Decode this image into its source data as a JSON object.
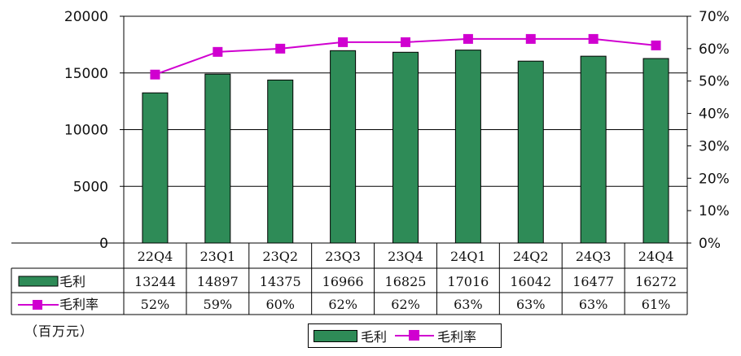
{
  "chart_data": {
    "type": "bar+line",
    "categories": [
      "22Q4",
      "23Q1",
      "23Q2",
      "23Q3",
      "23Q4",
      "24Q1",
      "24Q2",
      "24Q3",
      "24Q4"
    ],
    "series": [
      {
        "name": "毛利",
        "type": "bar",
        "axis": "left",
        "color": "#2e8b57",
        "values": [
          13244,
          14897,
          14375,
          16966,
          16825,
          17016,
          16042,
          16477,
          16272
        ]
      },
      {
        "name": "毛利率",
        "type": "line",
        "axis": "right",
        "color": "#d000d0",
        "values": [
          52,
          59,
          60,
          62,
          62,
          63,
          63,
          63,
          61
        ],
        "labels": [
          "52%",
          "59%",
          "60%",
          "62%",
          "62%",
          "63%",
          "63%",
          "63%",
          "61%"
        ]
      }
    ],
    "bar_labels": [
      "13244",
      "14897",
      "14375",
      "16966",
      "16825",
      "17016",
      "16042",
      "16477",
      "16272"
    ],
    "y_left": {
      "ylim": [
        0,
        20000
      ],
      "ticks": [
        "0",
        "5000",
        "10000",
        "15000",
        "20000"
      ]
    },
    "y_right": {
      "ylim": [
        0,
        70
      ],
      "ticks": [
        "0%",
        "10%",
        "20%",
        "30%",
        "40%",
        "50%",
        "60%",
        "70%"
      ]
    },
    "grid": true,
    "data_table": true,
    "legend_position": "bottom"
  },
  "unit_label": "（百万元）",
  "legend": {
    "bar_label": "毛利",
    "line_label": "毛利率"
  }
}
